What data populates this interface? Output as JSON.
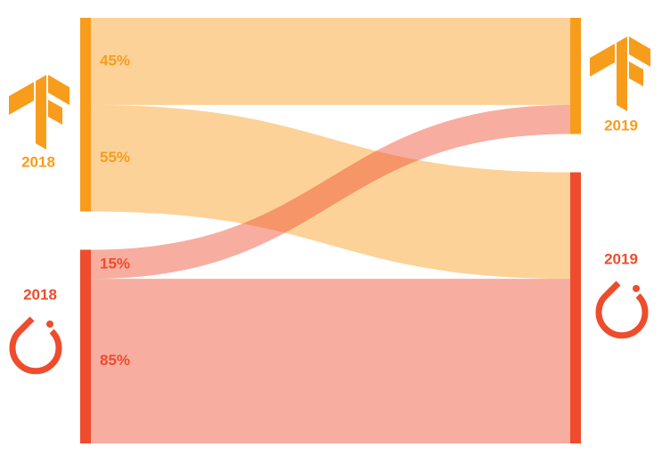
{
  "chart_data": {
    "type": "sankey",
    "nodes": {
      "labels": [
        "2018",
        "2018",
        "2019",
        "2019"
      ],
      "colors": [
        "#f89c1c",
        "#ee4c2c",
        "#f89c1c",
        "#ee4c2c"
      ]
    },
    "links": {
      "sources": [
        0,
        0,
        1,
        1
      ],
      "targets": [
        2,
        3,
        2,
        3
      ],
      "values": [
        45,
        55,
        15,
        85
      ],
      "value_labels": [
        "45%",
        "55%",
        "15%",
        "85%"
      ]
    }
  }
}
